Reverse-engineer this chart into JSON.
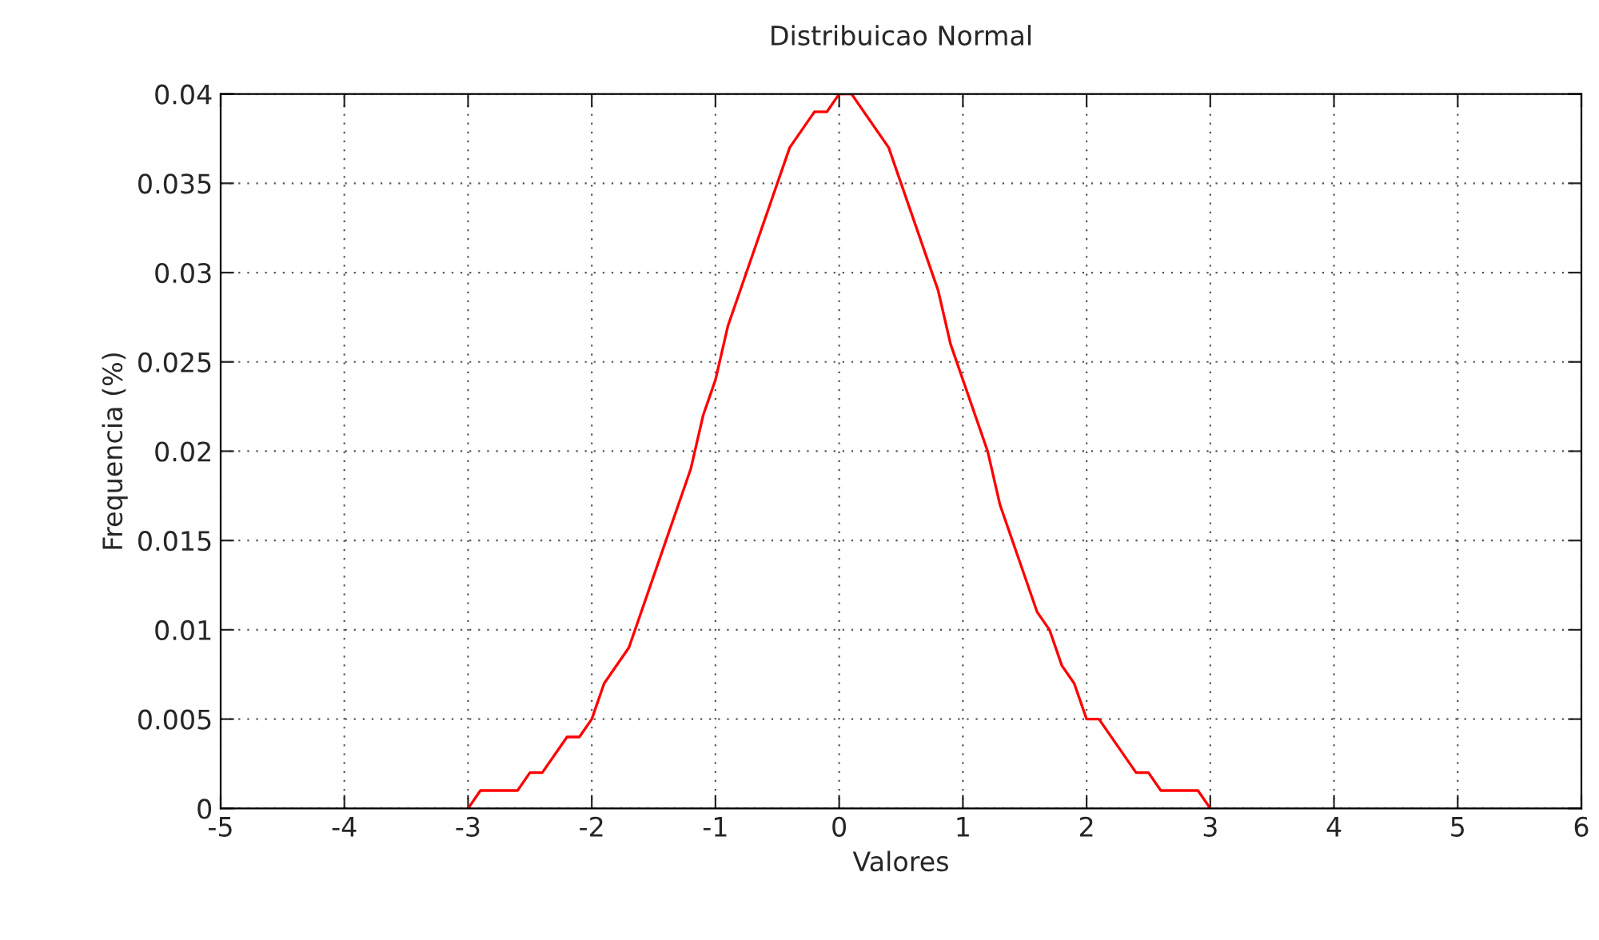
{
  "chart_data": {
    "type": "line",
    "title": "Distribuicao Normal",
    "xlabel": "Valores",
    "ylabel": "Frequencia (%)",
    "x": [
      -3,
      -2.9,
      -2.6,
      -2.5,
      -2.4,
      -2.2,
      -2.1,
      -2.0,
      -1.9,
      -1.7,
      -1.2,
      -1.1,
      -1.0,
      -0.9,
      -0.4,
      -0.2,
      -0.1,
      0,
      0.1,
      0.4,
      0.8,
      0.9,
      1.2,
      1.3,
      1.6,
      1.7,
      1.8,
      1.9,
      2.0,
      2.1,
      2.4,
      2.5,
      2.6,
      2.9,
      3.0
    ],
    "series": [
      {
        "color": "#ff0000",
        "values": [
          0,
          0.001,
          0.001,
          0.002,
          0.002,
          0.004,
          0.004,
          0.005,
          0.007,
          0.009,
          0.019,
          0.022,
          0.024,
          0.027,
          0.037,
          0.039,
          0.039,
          0.04,
          0.04,
          0.037,
          0.029,
          0.026,
          0.02,
          0.017,
          0.011,
          0.01,
          0.008,
          0.007,
          0.005,
          0.005,
          0.002,
          0.002,
          0.001,
          0.001,
          0
        ]
      }
    ],
    "xlim": [
      -5,
      6
    ],
    "xticks": [
      -5,
      -4,
      -3,
      -2,
      -1,
      0,
      1,
      2,
      3,
      4,
      5,
      6
    ],
    "ylim": [
      0,
      0.04
    ],
    "yticks": [
      0,
      0.005,
      0.01,
      0.015,
      0.02,
      0.025,
      0.03,
      0.035,
      0.04
    ],
    "grid": true,
    "legend": false,
    "marker": "none",
    "line_style": "solid"
  }
}
